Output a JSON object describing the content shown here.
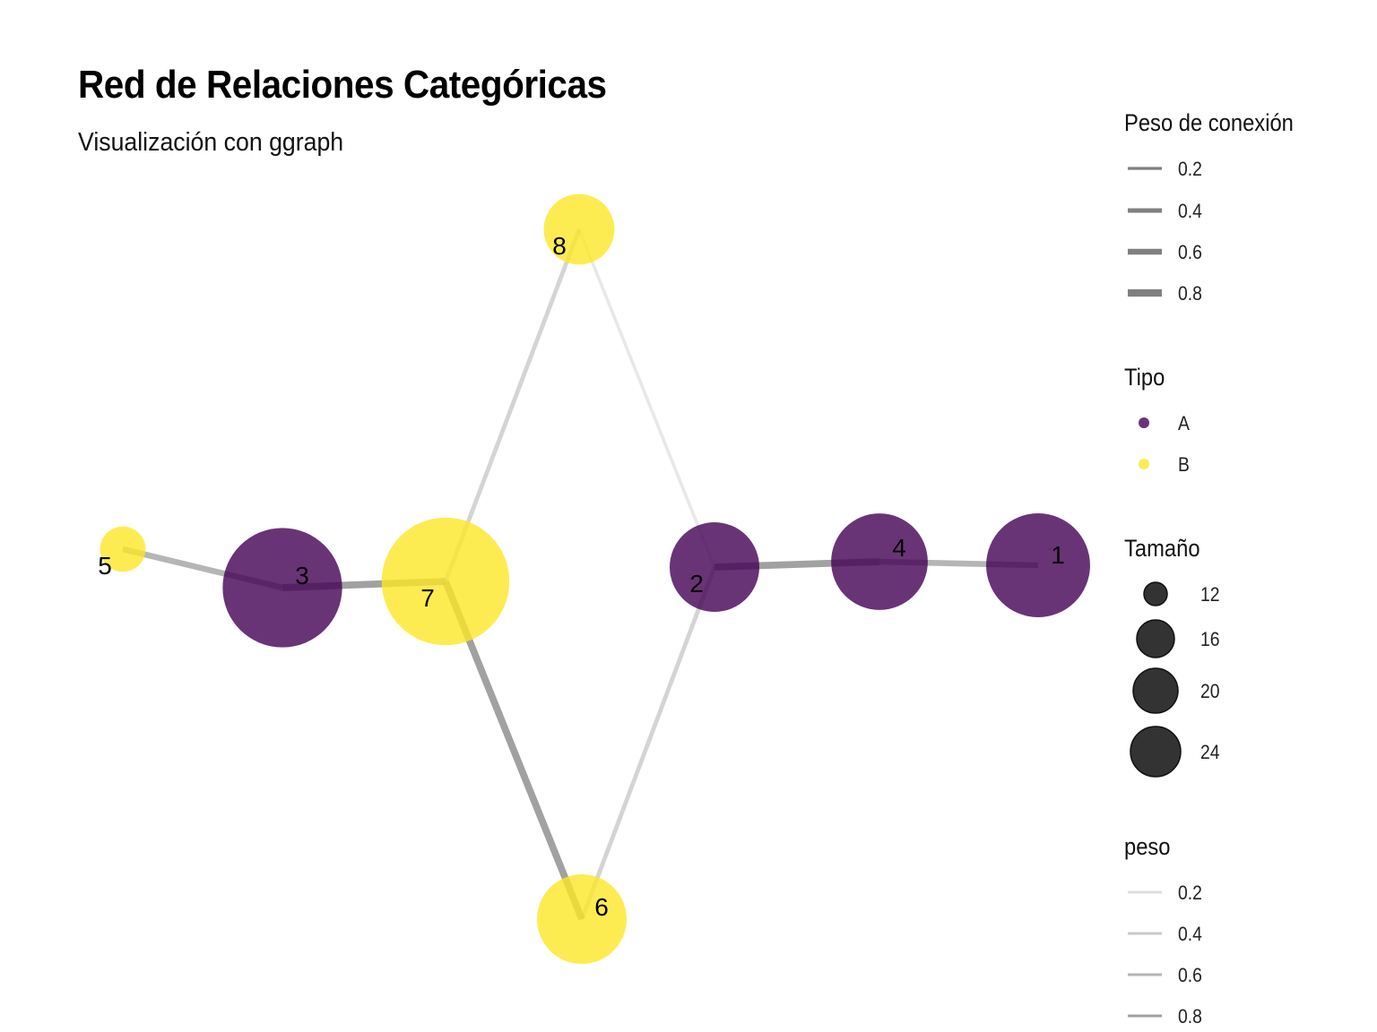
{
  "title": "Red de Relaciones Categóricas",
  "subtitle": "Visualización con ggraph",
  "colors": {
    "A": "#440154",
    "B": "#FDE725",
    "edge": "#808080",
    "size_legend": "#333333"
  },
  "chart_data": {
    "type": "network",
    "nodes": [
      {
        "id": "1",
        "tipo": "A",
        "tamano": 22
      },
      {
        "id": "2",
        "tipo": "A",
        "tamano": 20
      },
      {
        "id": "3",
        "tipo": "A",
        "tamano": 24
      },
      {
        "id": "4",
        "tipo": "A",
        "tamano": 21
      },
      {
        "id": "5",
        "tipo": "B",
        "tamano": 12
      },
      {
        "id": "6",
        "tipo": "B",
        "tamano": 20
      },
      {
        "id": "7",
        "tipo": "B",
        "tamano": 25
      },
      {
        "id": "8",
        "tipo": "B",
        "tamano": 17
      }
    ],
    "edges": [
      {
        "from": "5",
        "to": "3",
        "peso": 0.6
      },
      {
        "from": "3",
        "to": "7",
        "peso": 0.8
      },
      {
        "from": "7",
        "to": "6",
        "peso": 0.8
      },
      {
        "from": "7",
        "to": "8",
        "peso": 0.3
      },
      {
        "from": "8",
        "to": "2",
        "peso": 0.1
      },
      {
        "from": "2",
        "to": "6",
        "peso": 0.3
      },
      {
        "from": "2",
        "to": "4",
        "peso": 0.8
      },
      {
        "from": "4",
        "to": "1",
        "peso": 0.6
      }
    ]
  },
  "legends": {
    "weight": {
      "title": "Peso de conexión",
      "items": [
        "0.2",
        "0.4",
        "0.6",
        "0.8"
      ]
    },
    "type": {
      "title": "Tipo",
      "items": [
        "A",
        "B"
      ]
    },
    "size": {
      "title": "Tamaño",
      "items": [
        "12",
        "16",
        "20",
        "24"
      ]
    },
    "alpha": {
      "title": "peso",
      "items": [
        "0.2",
        "0.4",
        "0.6",
        "0.8"
      ]
    }
  }
}
